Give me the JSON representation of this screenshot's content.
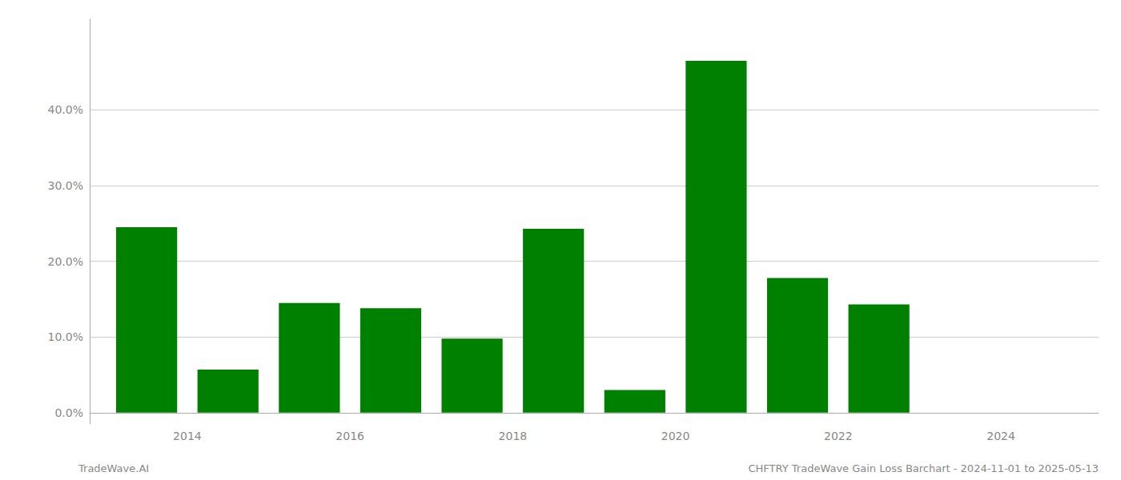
{
  "chart_data": {
    "type": "bar",
    "x": [
      2013.5,
      2014.5,
      2015.5,
      2016.5,
      2017.5,
      2018.5,
      2019.5,
      2020.5,
      2021.5,
      2022.5,
      2023.5
    ],
    "values": [
      0.245,
      0.057,
      0.145,
      0.138,
      0.098,
      0.243,
      0.03,
      0.465,
      0.178,
      0.143,
      0.0
    ],
    "color": "#008000",
    "xlim": [
      2012.8,
      2025.2
    ],
    "xticks": [
      2014,
      2016,
      2018,
      2020,
      2022,
      2024
    ],
    "ylim": [
      -0.015,
      0.52
    ],
    "yticks": [
      {
        "value": 0.0,
        "label": "0.0%"
      },
      {
        "value": 0.1,
        "label": "10.0%"
      },
      {
        "value": 0.2,
        "label": "20.0%"
      },
      {
        "value": 0.3,
        "label": "30.0%"
      },
      {
        "value": 0.4,
        "label": "40.0%"
      }
    ],
    "grid": true,
    "annotations": [
      "TradeWave.AI",
      "CHFTRY TradeWave Gain Loss Barchart - 2024-11-01 to 2025-05-13"
    ]
  }
}
